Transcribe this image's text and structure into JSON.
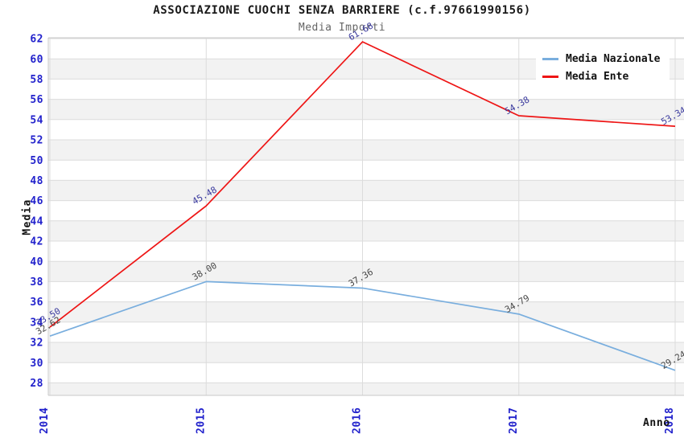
{
  "header": {
    "title": "ASSOCIAZIONE CUOCHI SENZA BARRIERE (c.f.97661990156)",
    "subtitle": "Media Importi"
  },
  "legend": {
    "position": "top-right",
    "items": [
      {
        "label": "Media Nazionale",
        "color": "#79aede"
      },
      {
        "label": "Media Ente",
        "color": "#ee1515"
      }
    ]
  },
  "chart_data": {
    "type": "line",
    "x": [
      "2014",
      "2015",
      "2016",
      "2017",
      "2018"
    ],
    "series": [
      {
        "name": "Media Nazionale",
        "color": "#79aede",
        "label_color": "#484848",
        "values": [
          32.62,
          38.0,
          37.36,
          34.79,
          29.24
        ]
      },
      {
        "name": "Media Ente",
        "color": "#ee1515",
        "label_color": "#3a3a9e",
        "values": [
          33.5,
          45.48,
          61.68,
          54.38,
          53.34
        ]
      }
    ],
    "title": "ASSOCIAZIONE CUOCHI SENZA BARRIERE (c.f.97661990156)",
    "subtitle": "Media Importi",
    "xlabel": "Anno",
    "ylabel": "Media",
    "ylim": [
      28,
      62
    ],
    "ytick_step": 2,
    "grid": true,
    "band_colors": [
      "#ffffff",
      "#f2f2f2"
    ],
    "gridline_color": "#dcdcdc",
    "border_color": "#c8c8c8",
    "tick_color": "#2222cc",
    "legend_position": "top-right"
  }
}
